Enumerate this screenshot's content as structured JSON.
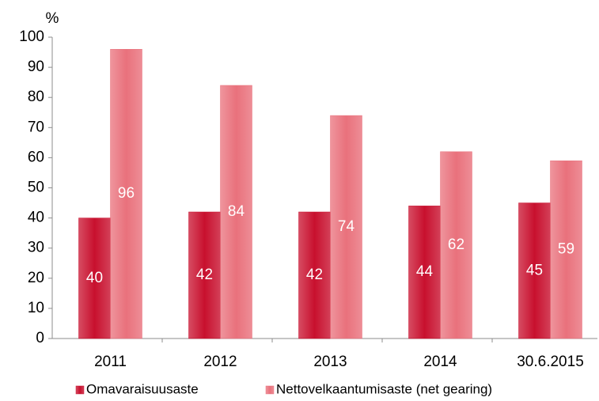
{
  "chart_data": {
    "type": "bar",
    "y_label": "%",
    "categories": [
      "2011",
      "2012",
      "2013",
      "2014",
      "30.6.2015"
    ],
    "series": [
      {
        "name": "Omavaraisuusaste",
        "color": "#c8102e",
        "values": [
          40,
          42,
          42,
          44,
          45
        ]
      },
      {
        "name": "Nettovelkaantumisaste (net gearing)",
        "color": "#e9717c",
        "values": [
          96,
          84,
          74,
          62,
          59
        ]
      }
    ],
    "ylim": [
      0,
      100
    ],
    "yticks": [
      0,
      10,
      20,
      30,
      40,
      50,
      60,
      70,
      80,
      90,
      100
    ],
    "grid": false,
    "legend": "bottom"
  }
}
